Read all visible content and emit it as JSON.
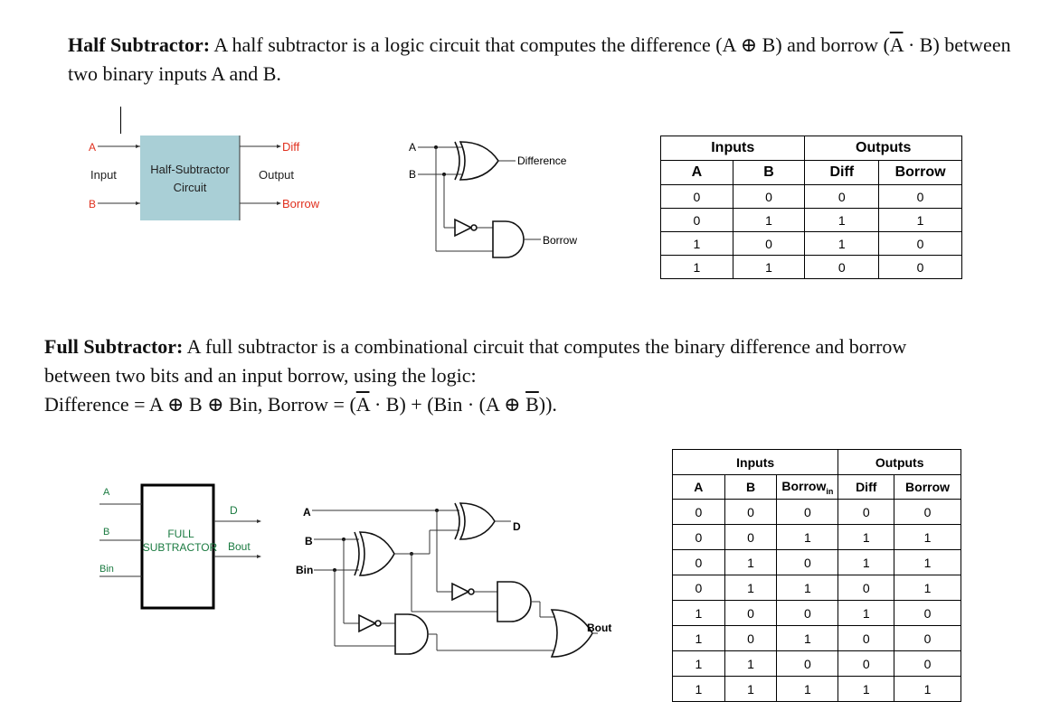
{
  "half": {
    "title": "Half Subtractor:",
    "text_a": " A half subtractor is a logic circuit that computes the difference (A ⊕ B) and borrow (",
    "abar": "A",
    "text_b": " · B) between two binary inputs A and B."
  },
  "full": {
    "title": "Full Subtractor:",
    "text_a": " A full subtractor is a combinational circuit that computes the binary difference and borrow between two bits and an input borrow, using the logic:",
    "formula_a": "Difference = A ⊕ B ⊕ Bin, Borrow = (",
    "abar": "A",
    "formula_b": " · B) + (Bin · (A ⊕ ",
    "bbar": "B",
    "formula_c": "))."
  },
  "hs_block": {
    "in_a": "A",
    "in_label": "Input",
    "in_b": "B",
    "box_line1": "Half-Subtractor",
    "box_line2": "Circuit",
    "out_diff": "Diff",
    "out_label": "Output",
    "out_borrow": "Borrow"
  },
  "hs_gates": {
    "in_a": "A",
    "in_b": "B",
    "out_diff": "Difference",
    "out_borrow": "Borrow"
  },
  "hs_table": {
    "group_inputs": "Inputs",
    "group_outputs": "Outputs",
    "headers": [
      "A",
      "B",
      "Diff",
      "Borrow"
    ],
    "rows": [
      [
        "0",
        "0",
        "0",
        "0"
      ],
      [
        "0",
        "1",
        "1",
        "1"
      ],
      [
        "1",
        "0",
        "1",
        "0"
      ],
      [
        "1",
        "1",
        "0",
        "0"
      ]
    ]
  },
  "fs_block": {
    "in_a": "A",
    "in_b": "B",
    "in_bin": "Bin",
    "box_line1": "FULL",
    "box_line2": "SUBTRACTOR",
    "out_d": "D",
    "out_bout": "Bout"
  },
  "fs_gates": {
    "in_a": "A",
    "in_b": "B",
    "in_bin": "Bin",
    "out_d": "D",
    "out_bout": "Bout"
  },
  "fs_table": {
    "group_inputs": "Inputs",
    "group_outputs": "Outputs",
    "headers": [
      "A",
      "B",
      "Borrow",
      "Diff",
      "Borrow"
    ],
    "header_sub": "in",
    "rows": [
      [
        "0",
        "0",
        "0",
        "0",
        "0"
      ],
      [
        "0",
        "0",
        "1",
        "1",
        "1"
      ],
      [
        "0",
        "1",
        "0",
        "1",
        "1"
      ],
      [
        "0",
        "1",
        "1",
        "0",
        "1"
      ],
      [
        "1",
        "0",
        "0",
        "1",
        "0"
      ],
      [
        "1",
        "0",
        "1",
        "0",
        "0"
      ],
      [
        "1",
        "1",
        "0",
        "0",
        "0"
      ],
      [
        "1",
        "1",
        "1",
        "1",
        "1"
      ]
    ]
  }
}
